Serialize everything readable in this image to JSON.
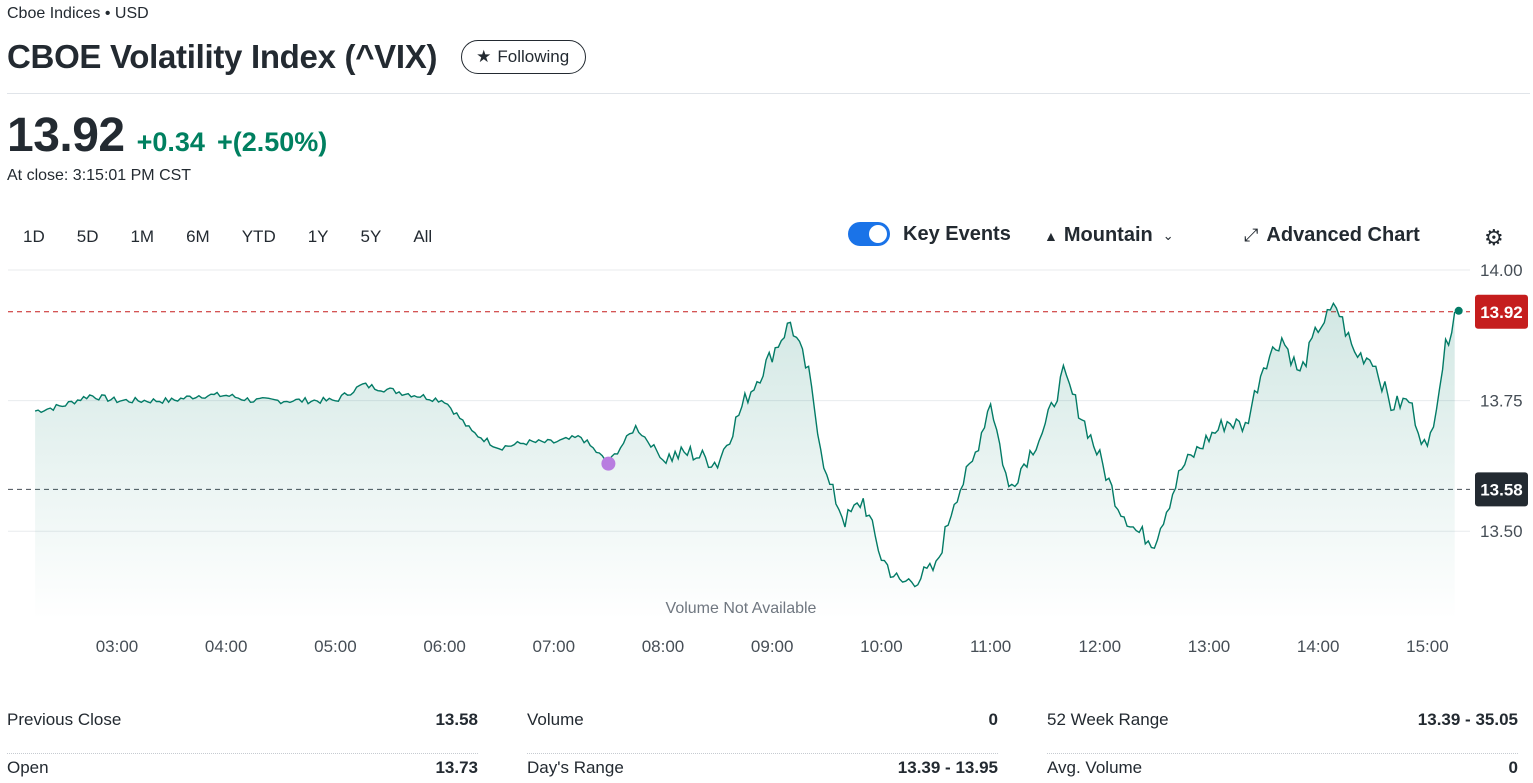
{
  "header": {
    "exchange": "Cboe Indices • USD",
    "title": "CBOE Volatility Index (^VIX)",
    "follow_label": "Following"
  },
  "quote": {
    "price": "13.92",
    "change": "+0.34",
    "change_percent": "+(2.50%)",
    "close_time": "At close: 3:15:01 PM CST"
  },
  "ranges": [
    "1D",
    "5D",
    "1M",
    "6M",
    "YTD",
    "1Y",
    "5Y",
    "All"
  ],
  "controls": {
    "key_events_label": "Key Events",
    "key_events_on": true,
    "chart_type_label": "Mountain",
    "advanced_chart_label": "Advanced Chart"
  },
  "colors": {
    "line": "#037b66",
    "positive": "#008060",
    "current_badge": "#c51d1d",
    "prev_badge": "#232a31",
    "toggle": "#1a73e8",
    "event_dot": "#b87de0"
  },
  "icons": {
    "follow": "star-icon",
    "chart_type": "mountain-icon",
    "advanced": "expand-icon",
    "settings": "gear-icon"
  },
  "chart_data": {
    "type": "area",
    "x_tick_labels": [
      "03:00",
      "04:00",
      "05:00",
      "06:00",
      "07:00",
      "08:00",
      "09:00",
      "10:00",
      "11:00",
      "12:00",
      "13:00",
      "14:00",
      "15:00"
    ],
    "y_tick_labels": [
      "14.00",
      "13.75",
      "13.50"
    ],
    "ylim": [
      13.33,
      14.0
    ],
    "current_value": "13.92",
    "previous_close_value": "13.58",
    "volume_note": "Volume Not Available",
    "key_event_time": "07:30",
    "series": [
      {
        "times": [
          "02:15",
          "02:30",
          "02:45",
          "03:00",
          "03:15",
          "03:30",
          "03:45",
          "04:00",
          "04:15",
          "04:30",
          "04:45",
          "05:00",
          "05:15",
          "05:30",
          "05:45",
          "06:00",
          "06:15",
          "06:30",
          "06:45",
          "07:00",
          "07:15",
          "07:30",
          "07:45",
          "08:00",
          "08:15",
          "08:30",
          "08:45",
          "09:00",
          "09:10",
          "09:20",
          "09:30",
          "09:40",
          "09:50",
          "10:00",
          "10:10",
          "10:20",
          "10:30",
          "10:40",
          "10:50",
          "11:00",
          "11:10",
          "11:20",
          "11:30",
          "11:40",
          "11:50",
          "12:00",
          "12:10",
          "12:20",
          "12:30",
          "12:45",
          "13:00",
          "13:10",
          "13:20",
          "13:30",
          "13:40",
          "13:50",
          "14:00",
          "14:10",
          "14:20",
          "14:30",
          "14:40",
          "14:50",
          "15:00",
          "15:10",
          "15:15"
        ],
        "values": [
          13.73,
          13.74,
          13.76,
          13.75,
          13.75,
          13.75,
          13.76,
          13.76,
          13.75,
          13.75,
          13.75,
          13.75,
          13.78,
          13.77,
          13.76,
          13.75,
          13.69,
          13.66,
          13.67,
          13.67,
          13.68,
          13.63,
          13.7,
          13.64,
          13.65,
          13.63,
          13.75,
          13.84,
          13.9,
          13.8,
          13.6,
          13.52,
          13.56,
          13.45,
          13.4,
          13.41,
          13.43,
          13.56,
          13.63,
          13.75,
          13.58,
          13.64,
          13.7,
          13.8,
          13.72,
          13.64,
          13.55,
          13.5,
          13.48,
          13.62,
          13.68,
          13.71,
          13.7,
          13.82,
          13.87,
          13.8,
          13.89,
          13.93,
          13.84,
          13.83,
          13.74,
          13.75,
          13.65,
          13.85,
          13.92
        ]
      }
    ]
  },
  "stats": {
    "columns": [
      [
        {
          "label": "Previous Close",
          "value": "13.58"
        },
        {
          "label": "Open",
          "value": "13.73"
        }
      ],
      [
        {
          "label": "Volume",
          "value": "0"
        },
        {
          "label": "Day's Range",
          "value": "13.39 - 13.95"
        }
      ],
      [
        {
          "label": "52 Week Range",
          "value": "13.39 - 35.05"
        },
        {
          "label": "Avg. Volume",
          "value": "0"
        }
      ]
    ]
  }
}
